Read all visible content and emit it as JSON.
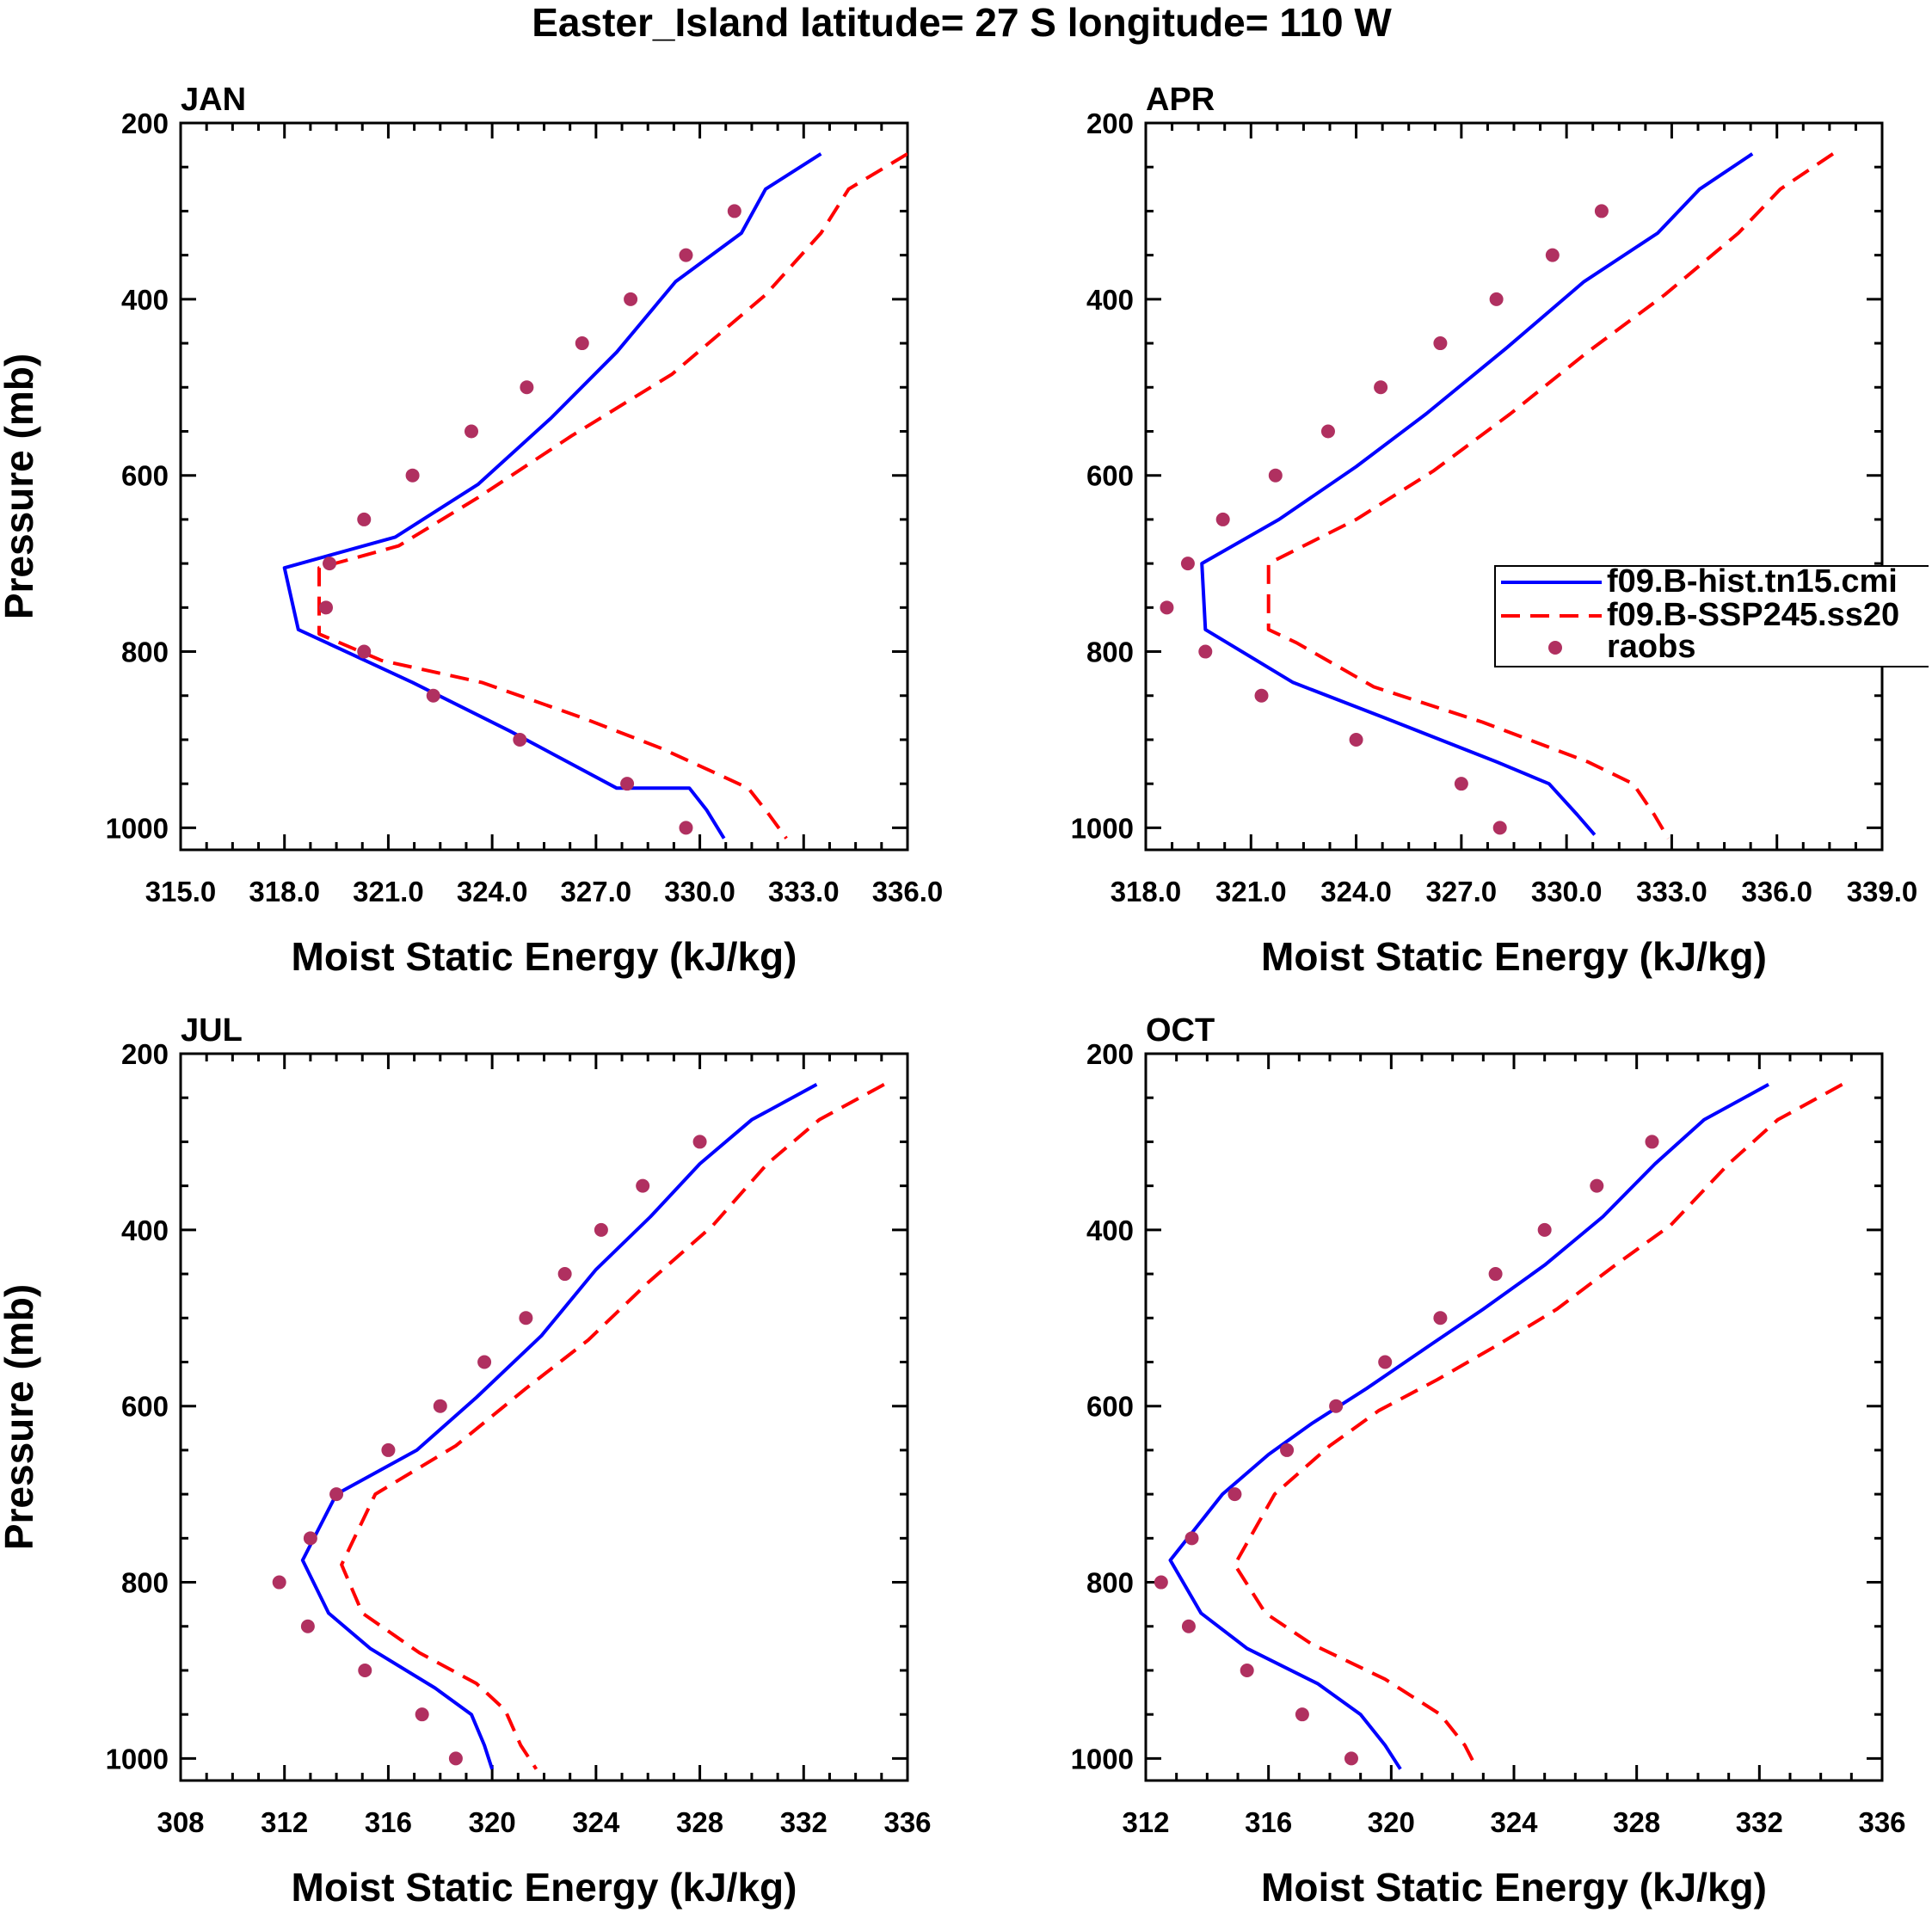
{
  "title": "Easter_Island  latitude= 27 S longitude= 110 W",
  "legend": [
    {
      "name": "f09.B-hist.tn15.cmi",
      "color": "#0000ff",
      "style": "solid"
    },
    {
      "name": "f09.B-SSP245.ss20",
      "color": "#ff0000",
      "style": "dashed"
    },
    {
      "name": "raobs",
      "color": "#b03060",
      "style": "marker"
    }
  ],
  "chart_data": [
    {
      "type": "line",
      "label": "JAN",
      "xlabel": "Moist Static Energy (kJ/kg)",
      "ylabel": "Pressure (mb)",
      "xlim": [
        315,
        336
      ],
      "ylim": [
        200,
        1025
      ],
      "x_ticks": [
        "315.0",
        "318.0",
        "321.0",
        "324.0",
        "327.0",
        "330.0",
        "333.0",
        "336.0"
      ],
      "y_ticks": [
        "200",
        "400",
        "600",
        "800",
        "1000"
      ],
      "series": [
        {
          "name": "f09.B-hist.tn15.cmi",
          "points": [
            [
              333.5,
              235
            ],
            [
              331.9,
              275
            ],
            [
              331.2,
              325
            ],
            [
              329.3,
              380
            ],
            [
              327.6,
              460
            ],
            [
              325.7,
              535
            ],
            [
              323.6,
              610
            ],
            [
              321.2,
              670
            ],
            [
              318.0,
              705
            ],
            [
              318.4,
              775
            ],
            [
              321.7,
              835
            ],
            [
              324.5,
              890
            ],
            [
              327.6,
              955
            ],
            [
              329.7,
              955
            ],
            [
              330.2,
              980
            ],
            [
              330.7,
              1012
            ]
          ]
        },
        {
          "name": "f09.B-SSP245.ss20",
          "points": [
            [
              336.0,
              235
            ],
            [
              334.3,
              275
            ],
            [
              333.5,
              325
            ],
            [
              331.9,
              395
            ],
            [
              329.2,
              485
            ],
            [
              326.3,
              555
            ],
            [
              323.6,
              625
            ],
            [
              321.3,
              680
            ],
            [
              319.0,
              705
            ],
            [
              319.0,
              780
            ],
            [
              320.8,
              810
            ],
            [
              323.7,
              835
            ],
            [
              326.6,
              875
            ],
            [
              328.9,
              910
            ],
            [
              331.4,
              955
            ],
            [
              332.0,
              985
            ],
            [
              332.5,
              1012
            ]
          ]
        },
        {
          "name": "raobs",
          "points": [
            [
              331.0,
              300
            ],
            [
              329.6,
              350
            ],
            [
              328.0,
              400
            ],
            [
              326.6,
              450
            ],
            [
              325.0,
              500
            ],
            [
              323.4,
              550
            ],
            [
              321.7,
              600
            ],
            [
              320.3,
              650
            ],
            [
              319.3,
              700
            ],
            [
              319.2,
              750
            ],
            [
              320.3,
              800
            ],
            [
              322.3,
              850
            ],
            [
              324.8,
              900
            ],
            [
              327.9,
              950
            ],
            [
              329.6,
              1000
            ]
          ]
        }
      ]
    },
    {
      "type": "line",
      "label": "APR",
      "xlabel": "Moist Static Energy (kJ/kg)",
      "ylabel": "",
      "xlim": [
        318,
        339
      ],
      "ylim": [
        200,
        1025
      ],
      "x_ticks": [
        "318.0",
        "321.0",
        "324.0",
        "327.0",
        "330.0",
        "333.0",
        "336.0",
        "339.0"
      ],
      "y_ticks": [
        "200",
        "400",
        "600",
        "800",
        "1000"
      ],
      "series": [
        {
          "name": "f09.B-hist.tn15.cmi",
          "points": [
            [
              335.3,
              235
            ],
            [
              333.8,
              275
            ],
            [
              332.6,
              325
            ],
            [
              330.5,
              380
            ],
            [
              328.3,
              455
            ],
            [
              326.0,
              530
            ],
            [
              324.0,
              590
            ],
            [
              321.8,
              650
            ],
            [
              319.6,
              700
            ],
            [
              319.7,
              775
            ],
            [
              322.2,
              835
            ],
            [
              324.8,
              875
            ],
            [
              328.0,
              925
            ],
            [
              329.5,
              950
            ],
            [
              330.3,
              985
            ],
            [
              330.8,
              1008
            ]
          ]
        },
        {
          "name": "f09.B-SSP245.ss20",
          "points": [
            [
              337.6,
              235
            ],
            [
              336.1,
              275
            ],
            [
              334.9,
              325
            ],
            [
              332.8,
              395
            ],
            [
              330.6,
              460
            ],
            [
              328.4,
              530
            ],
            [
              326.2,
              595
            ],
            [
              324.0,
              650
            ],
            [
              321.5,
              700
            ],
            [
              321.5,
              775
            ],
            [
              322.3,
              790
            ],
            [
              324.5,
              840
            ],
            [
              327.6,
              880
            ],
            [
              330.6,
              925
            ],
            [
              331.9,
              950
            ],
            [
              332.5,
              985
            ],
            [
              332.9,
              1012
            ]
          ]
        },
        {
          "name": "raobs",
          "points": [
            [
              331.0,
              300
            ],
            [
              329.6,
              350
            ],
            [
              328.0,
              400
            ],
            [
              326.4,
              450
            ],
            [
              324.7,
              500
            ],
            [
              323.2,
              550
            ],
            [
              321.7,
              600
            ],
            [
              320.2,
              650
            ],
            [
              319.2,
              700
            ],
            [
              318.6,
              750
            ],
            [
              319.7,
              800
            ],
            [
              321.3,
              850
            ],
            [
              324.0,
              900
            ],
            [
              327.0,
              950
            ],
            [
              328.1,
              1000
            ]
          ]
        }
      ]
    },
    {
      "type": "line",
      "label": "JUL",
      "xlabel": "Moist Static Energy (kJ/kg)",
      "ylabel": "Pressure (mb)",
      "xlim": [
        308,
        336
      ],
      "ylim": [
        200,
        1025
      ],
      "x_ticks": [
        "308",
        "312",
        "316",
        "320",
        "324",
        "328",
        "332",
        "336"
      ],
      "y_ticks": [
        "200",
        "400",
        "600",
        "800",
        "1000"
      ],
      "series": [
        {
          "name": "f09.B-hist.tn15.cmi",
          "points": [
            [
              332.5,
              235
            ],
            [
              330.0,
              275
            ],
            [
              328.0,
              325
            ],
            [
              326.1,
              385
            ],
            [
              324.0,
              445
            ],
            [
              321.9,
              520
            ],
            [
              319.4,
              590
            ],
            [
              317.1,
              650
            ],
            [
              314.0,
              700
            ],
            [
              312.7,
              775
            ],
            [
              313.7,
              835
            ],
            [
              315.3,
              875
            ],
            [
              317.8,
              920
            ],
            [
              319.2,
              950
            ],
            [
              319.7,
              985
            ],
            [
              320.0,
              1012
            ]
          ]
        },
        {
          "name": "f09.B-SSP245.ss20",
          "points": [
            [
              335.1,
              235
            ],
            [
              332.6,
              275
            ],
            [
              330.6,
              325
            ],
            [
              328.5,
              395
            ],
            [
              326.0,
              460
            ],
            [
              323.7,
              525
            ],
            [
              321.3,
              580
            ],
            [
              318.6,
              645
            ],
            [
              315.5,
              700
            ],
            [
              314.2,
              780
            ],
            [
              315.0,
              835
            ],
            [
              317.2,
              880
            ],
            [
              319.4,
              915
            ],
            [
              320.5,
              945
            ],
            [
              321.1,
              985
            ],
            [
              321.7,
              1012
            ]
          ]
        },
        {
          "name": "raobs",
          "points": [
            [
              328.0,
              300
            ],
            [
              325.8,
              350
            ],
            [
              324.2,
              400
            ],
            [
              322.8,
              450
            ],
            [
              321.3,
              500
            ],
            [
              319.7,
              550
            ],
            [
              318.0,
              600
            ],
            [
              316.0,
              650
            ],
            [
              314.0,
              700
            ],
            [
              313.0,
              750
            ],
            [
              311.8,
              800
            ],
            [
              312.9,
              850
            ],
            [
              315.1,
              900
            ],
            [
              317.3,
              950
            ],
            [
              318.6,
              1000
            ]
          ]
        }
      ]
    },
    {
      "type": "line",
      "label": "OCT",
      "xlabel": "Moist Static Energy (kJ/kg)",
      "ylabel": "",
      "xlim": [
        312,
        336
      ],
      "ylim": [
        200,
        1025
      ],
      "x_ticks": [
        "312",
        "316",
        "320",
        "324",
        "328",
        "332",
        "336"
      ],
      "y_ticks": [
        "200",
        "400",
        "600",
        "800",
        "1000"
      ],
      "series": [
        {
          "name": "f09.B-hist.tn15.cmi",
          "points": [
            [
              332.3,
              235
            ],
            [
              330.2,
              275
            ],
            [
              328.6,
              325
            ],
            [
              326.9,
              385
            ],
            [
              325.0,
              440
            ],
            [
              323.0,
              490
            ],
            [
              321.3,
              530
            ],
            [
              319.2,
              580
            ],
            [
              317.4,
              620
            ],
            [
              316.0,
              655
            ],
            [
              314.5,
              700
            ],
            [
              312.8,
              775
            ],
            [
              313.8,
              835
            ],
            [
              315.3,
              875
            ],
            [
              317.6,
              915
            ],
            [
              319.0,
              950
            ],
            [
              319.8,
              985
            ],
            [
              320.3,
              1012
            ]
          ]
        },
        {
          "name": "f09.B-SSP245.ss20",
          "points": [
            [
              334.7,
              235
            ],
            [
              332.6,
              275
            ],
            [
              331.0,
              325
            ],
            [
              329.1,
              395
            ],
            [
              327.3,
              440
            ],
            [
              325.4,
              490
            ],
            [
              323.5,
              530
            ],
            [
              321.5,
              570
            ],
            [
              319.6,
              605
            ],
            [
              318.0,
              645
            ],
            [
              316.2,
              700
            ],
            [
              314.9,
              780
            ],
            [
              315.9,
              835
            ],
            [
              317.4,
              870
            ],
            [
              319.8,
              910
            ],
            [
              321.6,
              950
            ],
            [
              322.4,
              985
            ],
            [
              322.8,
              1012
            ]
          ]
        },
        {
          "name": "raobs",
          "points": [
            [
              328.5,
              300
            ],
            [
              326.7,
              350
            ],
            [
              325.0,
              400
            ],
            [
              323.4,
              450
            ],
            [
              321.6,
              500
            ],
            [
              319.8,
              550
            ],
            [
              318.2,
              600
            ],
            [
              316.6,
              650
            ],
            [
              314.9,
              700
            ],
            [
              313.5,
              750
            ],
            [
              312.5,
              800
            ],
            [
              313.4,
              850
            ],
            [
              315.3,
              900
            ],
            [
              317.1,
              950
            ],
            [
              318.7,
              1000
            ]
          ]
        }
      ]
    }
  ]
}
